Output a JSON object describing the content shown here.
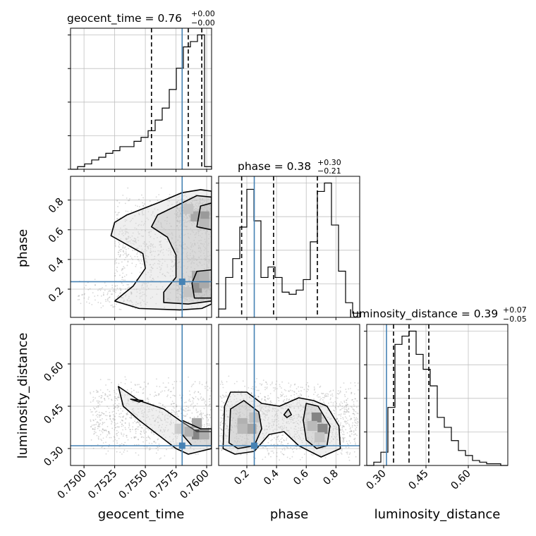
{
  "colors": {
    "truth": "#4682b4",
    "grid": "#c0c0c0",
    "hist": "#000000",
    "scatter": "#8c8c8c"
  },
  "chart_data": {
    "type": "corner",
    "parameters": [
      "geocent_time",
      "phase",
      "luminosity_distance"
    ],
    "truth": {
      "geocent_time": 0.758,
      "phase": 0.25,
      "luminosity_distance": 0.31
    },
    "grid": true,
    "titles": [
      {
        "name": "geocent_time",
        "median": "0.76",
        "plus": "+0.00",
        "minus": "−0.00"
      },
      {
        "name": "phase",
        "median": "0.38",
        "plus": "+0.30",
        "minus": "−0.21"
      },
      {
        "name": "luminosity_distance",
        "median": "0.39",
        "plus": "+0.07",
        "minus": "−0.05"
      }
    ],
    "axes": {
      "geocent_time": {
        "range": [
          0.7489,
          0.7604
        ],
        "ticks": [
          0.75,
          0.7525,
          0.755,
          0.7575,
          0.76
        ],
        "tick_labels": [
          "0.7500",
          "0.7525",
          "0.7550",
          "0.7575",
          "0.7600"
        ],
        "quantiles": [
          0.7555,
          0.7585,
          0.7596
        ]
      },
      "phase": {
        "range": [
          0.01,
          0.96
        ],
        "ticks": [
          0.2,
          0.4,
          0.6,
          0.8
        ],
        "tick_labels": [
          "0.2",
          "0.4",
          "0.6",
          "0.8"
        ],
        "quantiles": [
          0.165,
          0.38,
          0.675
        ]
      },
      "luminosity_distance": {
        "range": [
          0.24,
          0.74
        ],
        "ticks": [
          0.3,
          0.45,
          0.6
        ],
        "tick_labels": [
          "0.30",
          "0.45",
          "0.60"
        ],
        "quantiles": [
          0.335,
          0.39,
          0.46
        ]
      }
    },
    "histograms": {
      "geocent_time": {
        "edges": [
          0.7489,
          0.749475,
          0.75005,
          0.750625,
          0.7512,
          0.751775,
          0.75235,
          0.752925,
          0.7535,
          0.754075,
          0.75465,
          0.755225,
          0.7558,
          0.756375,
          0.75695,
          0.757525,
          0.7581,
          0.758675,
          0.75925,
          0.759825,
          0.7604
        ],
        "counts": [
          0,
          2,
          4,
          7,
          9,
          12,
          14,
          17,
          17,
          21,
          24,
          29,
          37,
          46,
          60,
          76,
          92,
          96,
          101,
          2
        ]
      },
      "phase": {
        "edges": [
          0.01,
          0.0575,
          0.105,
          0.1525,
          0.2,
          0.2475,
          0.295,
          0.3425,
          0.39,
          0.4375,
          0.485,
          0.5325,
          0.58,
          0.6275,
          0.675,
          0.7225,
          0.77,
          0.8175,
          0.865,
          0.9125,
          0.96
        ],
        "counts": [
          4,
          19,
          28,
          43,
          61,
          46,
          19,
          24,
          19,
          12,
          11,
          13,
          18,
          36,
          60,
          64,
          44,
          22,
          7,
          2
        ]
      },
      "luminosity_distance": {
        "edges": [
          0.24,
          0.265,
          0.29,
          0.315,
          0.34,
          0.365,
          0.39,
          0.415,
          0.44,
          0.465,
          0.49,
          0.515,
          0.54,
          0.565,
          0.59,
          0.615,
          0.64,
          0.665,
          0.69,
          0.715,
          0.74
        ],
        "counts": [
          0,
          2,
          8,
          35,
          73,
          78,
          81,
          67,
          58,
          48,
          29,
          23,
          15,
          9,
          6,
          3,
          2,
          1,
          1,
          0
        ]
      }
    },
    "contours": {
      "phase_vs_geocent_time": [
        [
          [
            0.7545,
            0.07
          ],
          [
            0.7578,
            0.06
          ],
          [
            0.7596,
            0.07
          ],
          [
            0.7604,
            0.1
          ],
          [
            0.7604,
            0.86
          ],
          [
            0.7595,
            0.87
          ],
          [
            0.758,
            0.85
          ],
          [
            0.756,
            0.78
          ],
          [
            0.7535,
            0.7
          ],
          [
            0.7525,
            0.65
          ],
          [
            0.7522,
            0.56
          ],
          [
            0.7535,
            0.5
          ],
          [
            0.7548,
            0.44
          ],
          [
            0.755,
            0.34
          ],
          [
            0.754,
            0.22
          ],
          [
            0.7525,
            0.12
          ],
          [
            0.7545,
            0.07
          ]
        ],
        [
          [
            0.7565,
            0.11
          ],
          [
            0.7585,
            0.1
          ],
          [
            0.7604,
            0.12
          ],
          [
            0.7604,
            0.82
          ],
          [
            0.7592,
            0.83
          ],
          [
            0.7575,
            0.76
          ],
          [
            0.756,
            0.7
          ],
          [
            0.7555,
            0.62
          ],
          [
            0.7568,
            0.55
          ],
          [
            0.7575,
            0.43
          ],
          [
            0.7575,
            0.28
          ],
          [
            0.7565,
            0.18
          ],
          [
            0.7565,
            0.11
          ]
        ],
        [
          [
            0.759,
            0.14
          ],
          [
            0.7604,
            0.14
          ],
          [
            0.7604,
            0.33
          ],
          [
            0.7592,
            0.32
          ],
          [
            0.7588,
            0.24
          ],
          [
            0.759,
            0.14
          ]
        ],
        [
          [
            0.7592,
            0.62
          ],
          [
            0.7604,
            0.6
          ],
          [
            0.7604,
            0.78
          ],
          [
            0.7595,
            0.76
          ],
          [
            0.7592,
            0.62
          ]
        ]
      ],
      "luminosity_distance_vs_geocent_time": [
        [
          [
            0.7528,
            0.52
          ],
          [
            0.7545,
            0.47
          ],
          [
            0.7565,
            0.44
          ],
          [
            0.7578,
            0.4
          ],
          [
            0.7592,
            0.36
          ],
          [
            0.7604,
            0.36
          ],
          [
            0.7604,
            0.3
          ],
          [
            0.7585,
            0.28
          ],
          [
            0.7575,
            0.3
          ],
          [
            0.756,
            0.35
          ],
          [
            0.7545,
            0.4
          ],
          [
            0.7532,
            0.45
          ],
          [
            0.7528,
            0.52
          ]
        ],
        [
          [
            0.758,
            0.4
          ],
          [
            0.7595,
            0.37
          ],
          [
            0.7604,
            0.37
          ],
          [
            0.7604,
            0.31
          ],
          [
            0.7588,
            0.31
          ],
          [
            0.758,
            0.35
          ],
          [
            0.758,
            0.4
          ]
        ],
        [
          [
            0.7538,
            0.475
          ],
          [
            0.7548,
            0.47
          ],
          [
            0.7545,
            0.465
          ],
          [
            0.7538,
            0.475
          ]
        ]
      ],
      "luminosity_distance_vs_phase": [
        [
          [
            0.04,
            0.3
          ],
          [
            0.05,
            0.45
          ],
          [
            0.09,
            0.5
          ],
          [
            0.2,
            0.5
          ],
          [
            0.3,
            0.46
          ],
          [
            0.42,
            0.45
          ],
          [
            0.55,
            0.48
          ],
          [
            0.65,
            0.47
          ],
          [
            0.74,
            0.45
          ],
          [
            0.82,
            0.38
          ],
          [
            0.83,
            0.3
          ],
          [
            0.7,
            0.27
          ],
          [
            0.55,
            0.31
          ],
          [
            0.45,
            0.36
          ],
          [
            0.35,
            0.35
          ],
          [
            0.25,
            0.29
          ],
          [
            0.12,
            0.28
          ],
          [
            0.04,
            0.3
          ]
        ],
        [
          [
            0.08,
            0.32
          ],
          [
            0.09,
            0.44
          ],
          [
            0.18,
            0.47
          ],
          [
            0.28,
            0.43
          ],
          [
            0.3,
            0.37
          ],
          [
            0.25,
            0.31
          ],
          [
            0.14,
            0.3
          ],
          [
            0.08,
            0.32
          ]
        ],
        [
          [
            0.58,
            0.4
          ],
          [
            0.6,
            0.46
          ],
          [
            0.68,
            0.45
          ],
          [
            0.76,
            0.38
          ],
          [
            0.74,
            0.31
          ],
          [
            0.67,
            0.3
          ],
          [
            0.6,
            0.33
          ],
          [
            0.58,
            0.4
          ]
        ],
        [
          [
            0.45,
            0.42
          ],
          [
            0.48,
            0.44
          ],
          [
            0.5,
            0.42
          ],
          [
            0.47,
            0.41
          ],
          [
            0.45,
            0.42
          ]
        ]
      ]
    },
    "density_blocks": {
      "phase_vs_geocent_time": [
        {
          "x": 0.7598,
          "y": 0.69,
          "level": 0.85
        },
        {
          "x": 0.7591,
          "y": 0.69,
          "level": 0.55
        },
        {
          "x": 0.7592,
          "y": 0.21,
          "level": 1.0
        },
        {
          "x": 0.7598,
          "y": 0.24,
          "level": 0.6
        },
        {
          "x": 0.7592,
          "y": 0.29,
          "level": 0.5
        },
        {
          "x": 0.7598,
          "y": 0.29,
          "level": 0.4
        },
        {
          "x": 0.7598,
          "y": 0.64,
          "level": 0.35
        },
        {
          "x": 0.7585,
          "y": 0.74,
          "level": 0.25
        },
        {
          "x": 0.7585,
          "y": 0.18,
          "level": 0.25
        }
      ],
      "luminosity_distance_vs_geocent_time": [
        {
          "x": 0.7592,
          "y": 0.35,
          "level": 0.95
        },
        {
          "x": 0.7598,
          "y": 0.35,
          "level": 0.5
        },
        {
          "x": 0.7585,
          "y": 0.36,
          "level": 0.45
        },
        {
          "x": 0.7592,
          "y": 0.39,
          "level": 0.35
        },
        {
          "x": 0.7578,
          "y": 0.37,
          "level": 0.25
        }
      ],
      "luminosity_distance_vs_phase": [
        {
          "x": 0.67,
          "y": 0.41,
          "level": 0.95
        },
        {
          "x": 0.71,
          "y": 0.37,
          "level": 0.9
        },
        {
          "x": 0.23,
          "y": 0.37,
          "level": 0.6
        },
        {
          "x": 0.17,
          "y": 0.39,
          "level": 0.45
        },
        {
          "x": 0.17,
          "y": 0.37,
          "level": 0.35
        },
        {
          "x": 0.64,
          "y": 0.38,
          "level": 0.35
        },
        {
          "x": 0.25,
          "y": 0.41,
          "level": 0.3
        },
        {
          "x": 0.69,
          "y": 0.34,
          "level": 0.25
        }
      ]
    },
    "scatter_density": {
      "phase_vs_geocent_time": [
        {
          "x": [
            0.7525,
            0.7604
          ],
          "y": [
            0.05,
            0.9
          ],
          "n": 900
        },
        {
          "x": [
            0.7495,
            0.755
          ],
          "y": [
            0.05,
            0.28
          ],
          "n": 140
        },
        {
          "x": [
            0.7575,
            0.7604
          ],
          "y": [
            0.1,
            0.3
          ],
          "n": 350
        },
        {
          "x": [
            0.7575,
            0.7604
          ],
          "y": [
            0.6,
            0.85
          ],
          "n": 350
        }
      ],
      "luminosity_distance_vs_geocent_time": [
        {
          "x": [
            0.7505,
            0.7604
          ],
          "y": [
            0.26,
            0.56
          ],
          "n": 900
        }
      ],
      "luminosity_distance_vs_phase": [
        {
          "x": [
            0.02,
            0.95
          ],
          "y": [
            0.25,
            0.56
          ],
          "n": 1400
        }
      ]
    }
  }
}
